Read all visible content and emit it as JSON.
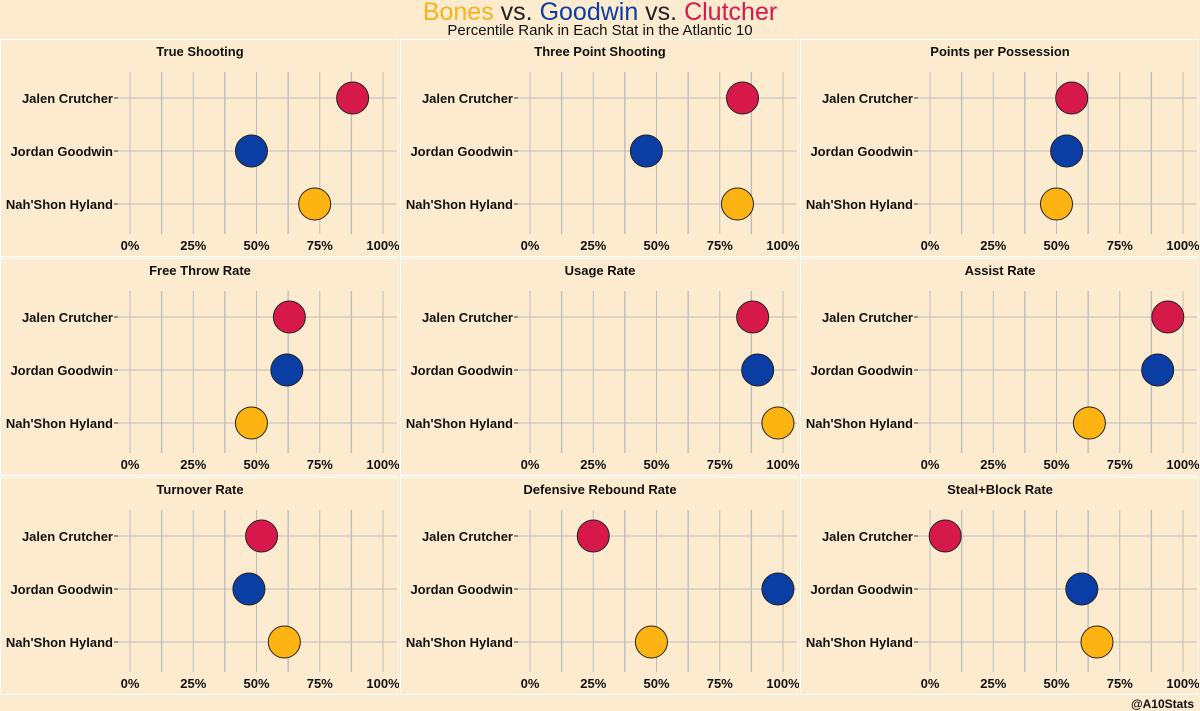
{
  "header": {
    "title_parts": [
      {
        "text": "Bones",
        "color": "#f8b21b"
      },
      {
        "text": " vs. ",
        "color": "#222222"
      },
      {
        "text": "Goodwin",
        "color": "#0b3ea5"
      },
      {
        "text": " vs. ",
        "color": "#222222"
      },
      {
        "text": "Clutcher",
        "color": "#d6184a"
      }
    ],
    "subtitle": "Percentile Rank in Each Stat in the Atlantic 10"
  },
  "caption": "@A10Stats",
  "colors": {
    "Jalen Crutcher": "#d6184a",
    "Jordan Goodwin": "#0b3ea5",
    "Nah'Shon Hyland": "#fdb412"
  },
  "chart_data": {
    "type": "scatter",
    "players": [
      "Jalen Crutcher",
      "Jordan Goodwin",
      "Nah'Shon Hyland"
    ],
    "xlim": [
      0,
      100
    ],
    "x_ticks": [
      "0%",
      "25%",
      "50%",
      "75%",
      "100%"
    ],
    "grid": true,
    "panels": [
      {
        "title": "True Shooting",
        "values": [
          88,
          48,
          73
        ]
      },
      {
        "title": "Three Point Shooting",
        "values": [
          84,
          46,
          82
        ]
      },
      {
        "title": "Points per Possession",
        "values": [
          56,
          54,
          50
        ]
      },
      {
        "title": "Free Throw Rate",
        "values": [
          63,
          62,
          48
        ]
      },
      {
        "title": "Usage Rate",
        "values": [
          88,
          90,
          98
        ]
      },
      {
        "title": "Assist Rate",
        "values": [
          94,
          90,
          63
        ]
      },
      {
        "title": "Turnover Rate",
        "values": [
          52,
          47,
          61
        ]
      },
      {
        "title": "Defensive Rebound Rate",
        "values": [
          25,
          98,
          48
        ]
      },
      {
        "title": "Steal+Block Rate",
        "values": [
          6,
          60,
          66
        ]
      }
    ]
  }
}
